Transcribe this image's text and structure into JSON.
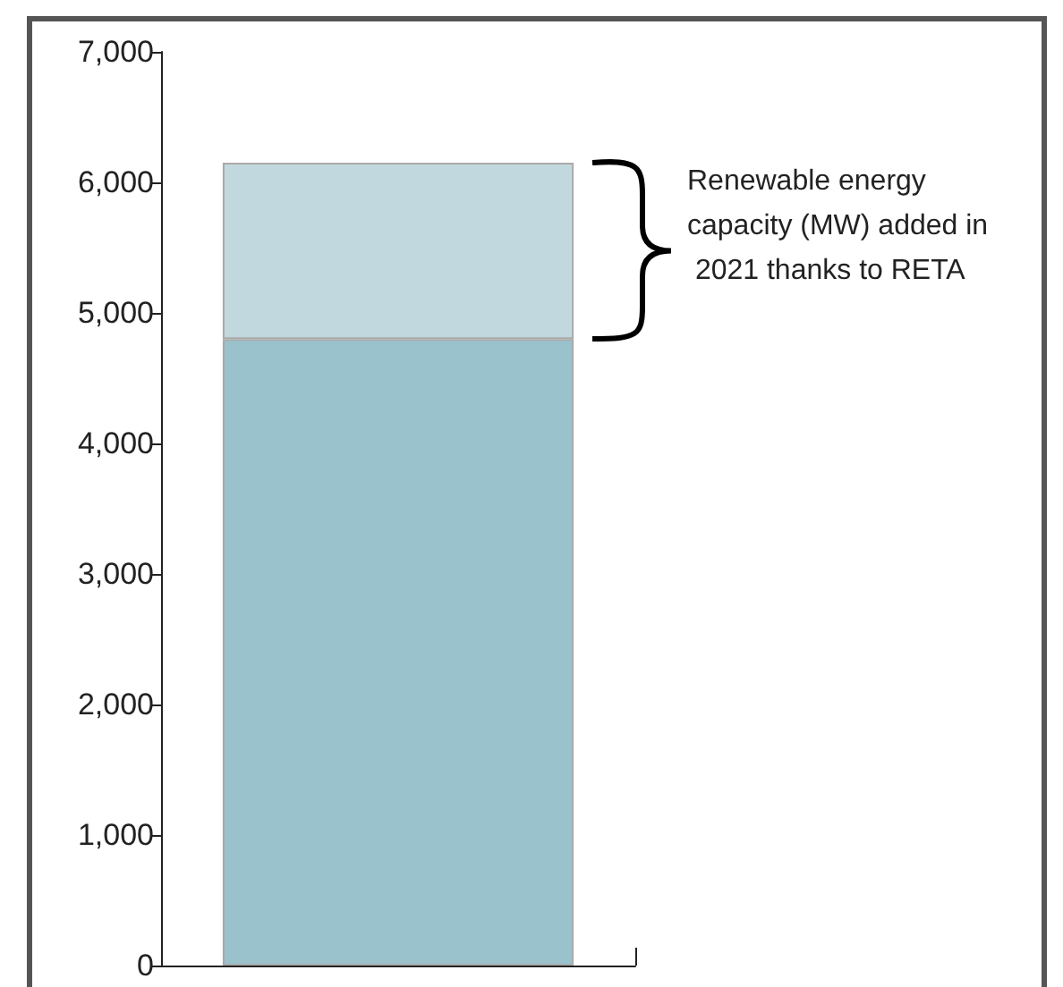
{
  "chart_data": {
    "type": "bar",
    "categories": [
      null
    ],
    "stacked": true,
    "series": [
      {
        "color": "#99c2cc",
        "values": [
          4800
        ]
      },
      {
        "color": "#c1d8de",
        "values": [
          1350
        ]
      }
    ],
    "ylim": [
      0,
      7000
    ],
    "yticks": [
      0,
      {
        "value": 1000,
        "label": "1,000"
      },
      {
        "value": 2000,
        "label": "2,000"
      },
      {
        "value": 3000,
        "label": "3,000"
      },
      {
        "value": 4000,
        "label": "4,000"
      },
      {
        "value": 5000,
        "label": "5,000"
      },
      {
        "value": 6000,
        "label": "6,000"
      },
      {
        "value": 7000,
        "label": "7,000"
      }
    ],
    "grid": false,
    "annotations": [
      "Renewable energy capacity (MW) added in 2021 thanks to RETA"
    ]
  }
}
